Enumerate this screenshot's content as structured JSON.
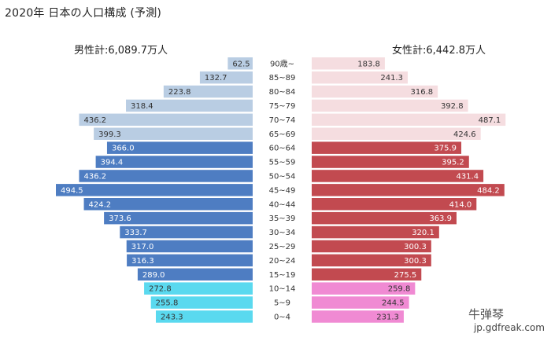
{
  "title": "2020年 日本の人口構成 (予測)",
  "male_total": "男性計:6,089.7万人",
  "female_total": "女性計:6,442.8万人",
  "watermark": "jp.gdfreak.com",
  "watermark_mark": "牛弹琴",
  "colors": {
    "male_old": "#b9cde3",
    "male_work": "#4e7dc2",
    "male_young": "#5ad9ef",
    "female_old": "#f5dde0",
    "female_work": "#c24a50",
    "female_young": "#f08ad3"
  },
  "chart_data": {
    "type": "bar",
    "orientation": "horizontal-pyramid",
    "categories": [
      "90歳~",
      "85~89",
      "80~84",
      "75~79",
      "70~74",
      "65~69",
      "60~64",
      "55~59",
      "50~54",
      "45~49",
      "40~44",
      "35~39",
      "30~34",
      "25~29",
      "20~24",
      "15~19",
      "10~14",
      "5~9",
      "0~4"
    ],
    "series": [
      {
        "name": "男性",
        "values": [
          62.5,
          132.7,
          223.8,
          318.4,
          436.2,
          399.3,
          366.0,
          394.4,
          436.2,
          494.5,
          424.2,
          373.6,
          333.7,
          317.0,
          316.3,
          289.0,
          272.8,
          255.8,
          243.3
        ]
      },
      {
        "name": "女性",
        "values": [
          183.8,
          241.3,
          316.8,
          392.8,
          487.1,
          424.6,
          375.9,
          395.2,
          431.4,
          484.2,
          414.0,
          363.9,
          320.1,
          300.3,
          300.3,
          275.5,
          259.8,
          244.5,
          231.3
        ]
      }
    ],
    "value_labels": {
      "male": [
        "62.5",
        "132.7",
        "223.8",
        "318.4",
        "436.2",
        "399.3",
        "366.0",
        "394.4",
        "436.2",
        "494.5",
        "424.2",
        "373.6",
        "333.7",
        "317.0",
        "316.3",
        "289.0",
        "272.8",
        "255.8",
        "243.3"
      ],
      "female": [
        "183.8",
        "241.3",
        "316.8",
        "392.8",
        "487.1",
        "424.6",
        "375.9",
        "395.2",
        "431.4",
        "484.2",
        "414.0",
        "363.9",
        "320.1",
        "300.3",
        "300.3",
        "275.5",
        "259.8",
        "244.5",
        "231.3"
      ]
    },
    "groups": [
      "old",
      "old",
      "old",
      "old",
      "old",
      "old",
      "work",
      "work",
      "work",
      "work",
      "work",
      "work",
      "work",
      "work",
      "work",
      "work",
      "young",
      "young",
      "young"
    ],
    "grid": false,
    "legend": "none"
  }
}
